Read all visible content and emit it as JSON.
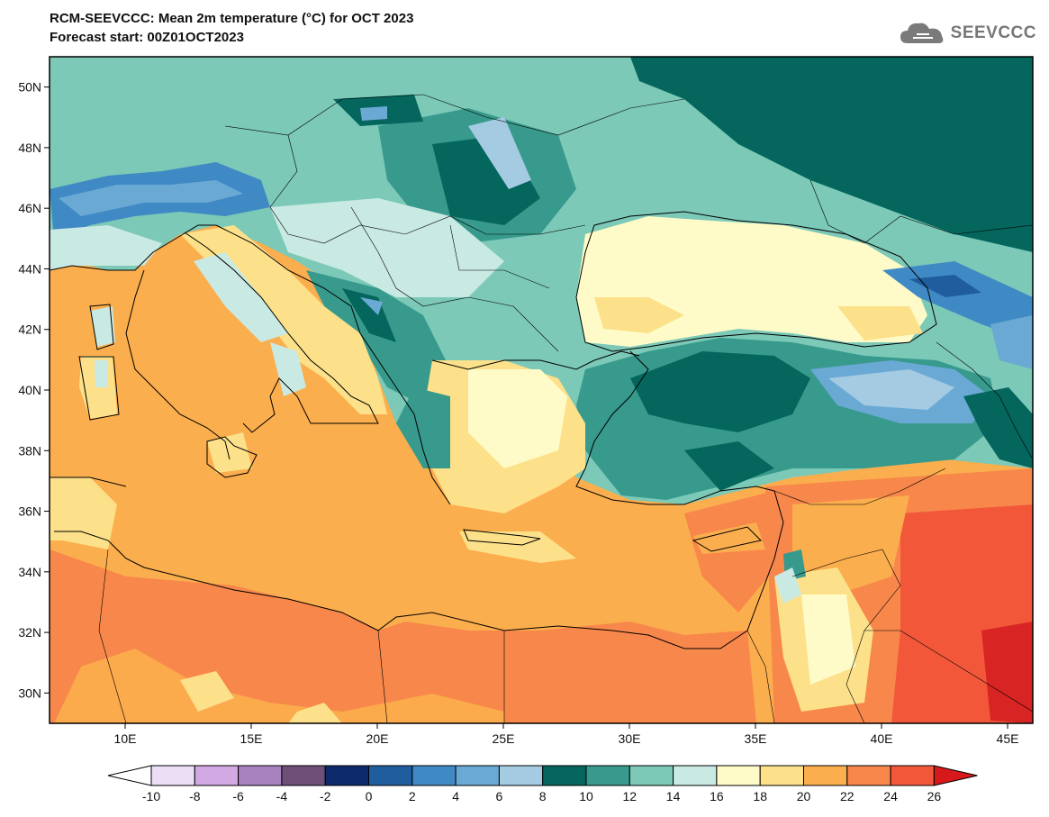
{
  "header": {
    "title": "RCM-SEEVCCC: Mean 2m temperature (°C) for OCT 2023",
    "subtitle": "Forecast start: 00Z01OCT2023"
  },
  "logo": {
    "text": "SEEVCCC",
    "icon": "cloud-icon"
  },
  "map": {
    "lat_labels": [
      "50N",
      "48N",
      "46N",
      "44N",
      "42N",
      "40N",
      "38N",
      "36N",
      "34N",
      "32N",
      "30N"
    ],
    "lon_labels": [
      "10E",
      "15E",
      "20E",
      "25E",
      "30E",
      "35E",
      "40E",
      "45E"
    ],
    "lat_values": [
      50,
      48,
      46,
      44,
      42,
      40,
      38,
      36,
      34,
      32,
      30
    ],
    "lon_values": [
      10,
      15,
      20,
      25,
      30,
      35,
      40,
      45
    ],
    "lat_range": [
      29,
      51
    ],
    "lon_range": [
      7,
      46
    ]
  },
  "colorbar": {
    "labels": [
      "-10",
      "-8",
      "-6",
      "-4",
      "-2",
      "0",
      "2",
      "4",
      "6",
      "8",
      "10",
      "12",
      "14",
      "16",
      "18",
      "20",
      "22",
      "24",
      "26"
    ],
    "low_color": "#ffffff",
    "high_color": "#d7191c",
    "colors": [
      "#ecdff5",
      "#d3a9e3",
      "#a882bf",
      "#6d4f78",
      "#0d2a6b",
      "#1f5d9e",
      "#3f8ac4",
      "#6ba9d5",
      "#a5cbe3",
      "#04665c",
      "#379a8c",
      "#7cc9b8",
      "#c9e9e3",
      "#fffbc8",
      "#fce18a",
      "#fbae4d",
      "#f8874b",
      "#f2573a"
    ]
  },
  "palette": {
    "sea_warm": "#fbae4d",
    "land_hot": "#f8874b",
    "very_hot": "#f2573a",
    "extreme": "#d92424",
    "dark_teal": "#04665c",
    "teal": "#379a8c",
    "light_teal": "#7cc9b8",
    "pale_teal": "#c9e9e3",
    "cream": "#fffbc8",
    "light_orange": "#fce18a",
    "blue": "#6ba9d5",
    "light_blue": "#a5cbe3",
    "mid_blue": "#3f8ac4"
  }
}
